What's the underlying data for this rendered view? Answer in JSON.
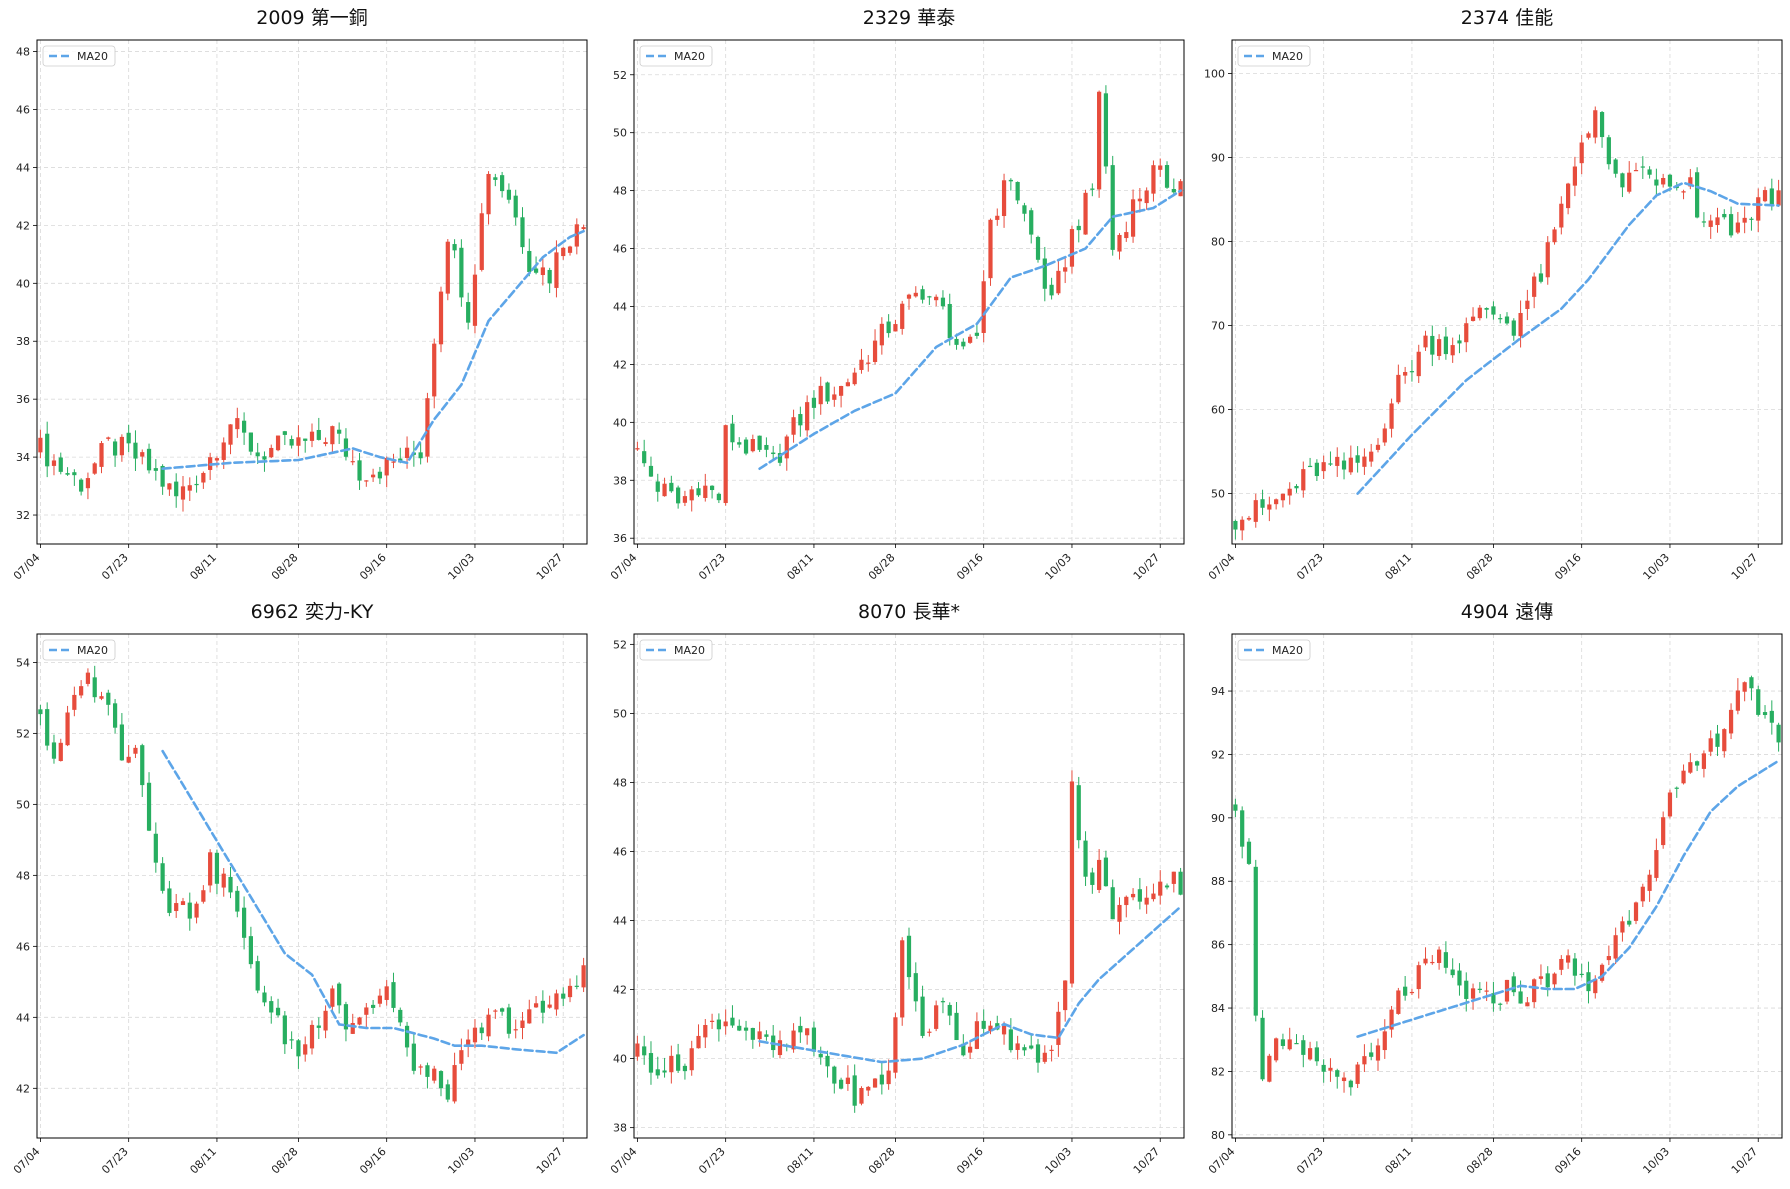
{
  "colors": {
    "up": "#e74c3c",
    "down": "#27ae60",
    "ma": "#5da5e8",
    "grid": "#d9d9d9"
  },
  "chart_data": [
    {
      "type": "candlestick",
      "title": "2009 第一銅",
      "legend": {
        "label": "MA20",
        "placement": "top-left"
      },
      "grid": true,
      "x_ticks": [
        "07/04",
        "07/23",
        "08/11",
        "08/28",
        "09/16",
        "10/03",
        "10/27"
      ],
      "x_tick_index": [
        0,
        13,
        26,
        38,
        51,
        64,
        77
      ],
      "n": 81,
      "ylim": [
        31,
        48.4
      ],
      "y_ticks": [
        32,
        34,
        36,
        38,
        40,
        42,
        44,
        46,
        48
      ],
      "anchors": [
        [
          0,
          34.3
        ],
        [
          3,
          33.6
        ],
        [
          6,
          33.1
        ],
        [
          10,
          34.4
        ],
        [
          13,
          34.2
        ],
        [
          17,
          33.4
        ],
        [
          20,
          32.6
        ],
        [
          24,
          33.6
        ],
        [
          28,
          35.2
        ],
        [
          32,
          34.1
        ],
        [
          36,
          34.4
        ],
        [
          40,
          34.5
        ],
        [
          43,
          34.9
        ],
        [
          47,
          33.5
        ],
        [
          50,
          33.6
        ],
        [
          54,
          34.0
        ],
        [
          56,
          34.2
        ],
        [
          58,
          38.2
        ],
        [
          60,
          41.8
        ],
        [
          63,
          39.0
        ],
        [
          66,
          44.0
        ],
        [
          69,
          43.0
        ],
        [
          72,
          40.8
        ],
        [
          75,
          40.3
        ],
        [
          77,
          41.5
        ],
        [
          80,
          42.0
        ]
      ],
      "ma": [
        [
          18,
          33.6
        ],
        [
          28,
          33.8
        ],
        [
          38,
          33.9
        ],
        [
          46,
          34.3
        ],
        [
          50,
          34.0
        ],
        [
          54,
          33.8
        ],
        [
          58,
          35.3
        ],
        [
          62,
          36.5
        ],
        [
          66,
          38.7
        ],
        [
          70,
          39.8
        ],
        [
          74,
          40.9
        ],
        [
          78,
          41.6
        ],
        [
          80,
          41.8
        ]
      ]
    },
    {
      "type": "candlestick",
      "title": "2329 華泰",
      "legend": {
        "label": "MA20",
        "placement": "top-left"
      },
      "grid": true,
      "x_ticks": [
        "07/04",
        "07/23",
        "08/11",
        "08/28",
        "09/16",
        "10/03",
        "10/27"
      ],
      "x_tick_index": [
        0,
        13,
        26,
        38,
        51,
        64,
        77
      ],
      "n": 81,
      "ylim": [
        35.8,
        53.2
      ],
      "y_ticks": [
        36,
        38,
        40,
        42,
        44,
        46,
        48,
        50,
        52
      ],
      "anchors": [
        [
          0,
          38.9
        ],
        [
          3,
          37.8
        ],
        [
          6,
          37.2
        ],
        [
          9,
          37.9
        ],
        [
          12,
          37.4
        ],
        [
          13,
          39.6
        ],
        [
          17,
          39.0
        ],
        [
          20,
          38.6
        ],
        [
          23,
          39.8
        ],
        [
          26,
          40.8
        ],
        [
          30,
          41.2
        ],
        [
          34,
          42.4
        ],
        [
          38,
          43.6
        ],
        [
          42,
          44.6
        ],
        [
          45,
          43.8
        ],
        [
          48,
          42.2
        ],
        [
          50,
          43.0
        ],
        [
          52,
          47.0
        ],
        [
          55,
          48.5
        ],
        [
          58,
          46.4
        ],
        [
          61,
          44.0
        ],
        [
          64,
          46.5
        ],
        [
          67,
          48.0
        ],
        [
          68,
          51.5
        ],
        [
          70,
          46.0
        ],
        [
          73,
          47.5
        ],
        [
          76,
          48.6
        ],
        [
          78,
          48.3
        ],
        [
          80,
          48.3
        ]
      ],
      "ma": [
        [
          18,
          38.4
        ],
        [
          26,
          39.6
        ],
        [
          32,
          40.4
        ],
        [
          38,
          41.0
        ],
        [
          44,
          42.6
        ],
        [
          50,
          43.4
        ],
        [
          55,
          45.0
        ],
        [
          60,
          45.4
        ],
        [
          66,
          46.0
        ],
        [
          70,
          47.1
        ],
        [
          76,
          47.4
        ],
        [
          80,
          48.0
        ]
      ]
    },
    {
      "type": "candlestick",
      "title": "2374 佳能",
      "legend": {
        "label": "MA20",
        "placement": "top-left"
      },
      "grid": true,
      "x_ticks": [
        "07/04",
        "07/23",
        "08/11",
        "08/28",
        "09/16",
        "10/03",
        "10/27"
      ],
      "x_tick_index": [
        0,
        13,
        26,
        38,
        51,
        64,
        77
      ],
      "n": 81,
      "ylim": [
        44,
        104
      ],
      "y_ticks": [
        50,
        60,
        70,
        80,
        90,
        100
      ],
      "anchors": [
        [
          0,
          47
        ],
        [
          5,
          48.5
        ],
        [
          9,
          51
        ],
        [
          12,
          53
        ],
        [
          17,
          53
        ],
        [
          20,
          55
        ],
        [
          24,
          63
        ],
        [
          28,
          68
        ],
        [
          32,
          68
        ],
        [
          37,
          72
        ],
        [
          41,
          70
        ],
        [
          45,
          76
        ],
        [
          47,
          81
        ],
        [
          51,
          92
        ],
        [
          53,
          96
        ],
        [
          55,
          88
        ],
        [
          58,
          87
        ],
        [
          61,
          88
        ],
        [
          64,
          86
        ],
        [
          67,
          87
        ],
        [
          68,
          82
        ],
        [
          71,
          82
        ],
        [
          74,
          81
        ],
        [
          77,
          85
        ],
        [
          80,
          85
        ]
      ],
      "ma": [
        [
          18,
          50
        ],
        [
          26,
          57
        ],
        [
          34,
          63.5
        ],
        [
          42,
          68.5
        ],
        [
          48,
          72
        ],
        [
          52,
          75.5
        ],
        [
          58,
          82
        ],
        [
          62,
          85.5
        ],
        [
          66,
          87
        ],
        [
          70,
          86
        ],
        [
          74,
          84.5
        ],
        [
          80,
          84.3
        ]
      ]
    },
    {
      "type": "candlestick",
      "title": "6962 奕力-KY",
      "legend": {
        "label": "MA20",
        "placement": "top-left"
      },
      "grid": true,
      "x_ticks": [
        "07/04",
        "07/23",
        "08/11",
        "08/28",
        "09/16",
        "10/03",
        "10/27"
      ],
      "x_tick_index": [
        0,
        13,
        26,
        38,
        51,
        64,
        77
      ],
      "n": 81,
      "ylim": [
        40.6,
        54.8
      ],
      "y_ticks": [
        42,
        44,
        46,
        48,
        50,
        52,
        54
      ],
      "anchors": [
        [
          0,
          52.6
        ],
        [
          2,
          51.0
        ],
        [
          4,
          52.3
        ],
        [
          6,
          53.6
        ],
        [
          9,
          53.2
        ],
        [
          12,
          51.5
        ],
        [
          14,
          51.8
        ],
        [
          16,
          49.3
        ],
        [
          19,
          47.2
        ],
        [
          22,
          47.0
        ],
        [
          25,
          48.3
        ],
        [
          28,
          47.6
        ],
        [
          30,
          46.0
        ],
        [
          34,
          44.0
        ],
        [
          38,
          43.0
        ],
        [
          41,
          44.0
        ],
        [
          43,
          45.0
        ],
        [
          45,
          43.8
        ],
        [
          48,
          44.2
        ],
        [
          51,
          44.8
        ],
        [
          54,
          43.0
        ],
        [
          57,
          42.3
        ],
        [
          60,
          42.0
        ],
        [
          64,
          43.5
        ],
        [
          67,
          44.0
        ],
        [
          70,
          43.8
        ],
        [
          74,
          44.2
        ],
        [
          77,
          44.6
        ],
        [
          80,
          45.5
        ]
      ],
      "ma": [
        [
          18,
          51.5
        ],
        [
          24,
          49.6
        ],
        [
          30,
          47.7
        ],
        [
          36,
          45.8
        ],
        [
          40,
          45.2
        ],
        [
          44,
          43.8
        ],
        [
          48,
          43.7
        ],
        [
          52,
          43.7
        ],
        [
          56,
          43.5
        ],
        [
          58,
          43.4
        ],
        [
          61,
          43.2
        ],
        [
          65,
          43.2
        ],
        [
          70,
          43.1
        ],
        [
          76,
          43.0
        ],
        [
          80,
          43.5
        ]
      ]
    },
    {
      "type": "candlestick",
      "title": "8070 長華*",
      "legend": {
        "label": "MA20",
        "placement": "top-left"
      },
      "grid": true,
      "x_ticks": [
        "07/04",
        "07/23",
        "08/11",
        "08/28",
        "09/16",
        "10/03",
        "10/27"
      ],
      "x_tick_index": [
        0,
        13,
        26,
        38,
        51,
        64,
        77
      ],
      "n": 81,
      "ylim": [
        37.7,
        52.3
      ],
      "y_ticks": [
        38,
        40,
        42,
        44,
        46,
        48,
        50,
        52
      ],
      "anchors": [
        [
          0,
          40.2
        ],
        [
          3,
          39.8
        ],
        [
          6,
          39.7
        ],
        [
          9,
          40.6
        ],
        [
          12,
          41.2
        ],
        [
          15,
          41.0
        ],
        [
          18,
          40.5
        ],
        [
          21,
          40.2
        ],
        [
          24,
          40.8
        ],
        [
          27,
          40.0
        ],
        [
          30,
          39.2
        ],
        [
          33,
          38.9
        ],
        [
          37,
          39.6
        ],
        [
          39,
          43.2
        ],
        [
          42,
          40.8
        ],
        [
          45,
          41.5
        ],
        [
          48,
          40.3
        ],
        [
          51,
          41.2
        ],
        [
          54,
          40.9
        ],
        [
          57,
          40.0
        ],
        [
          60,
          39.9
        ],
        [
          63,
          42.0
        ],
        [
          64,
          48.0
        ],
        [
          66,
          45.0
        ],
        [
          68,
          45.5
        ],
        [
          70,
          44.3
        ],
        [
          73,
          44.6
        ],
        [
          76,
          45.0
        ],
        [
          78,
          45.2
        ],
        [
          80,
          45.1
        ]
      ],
      "ma": [
        [
          18,
          40.5
        ],
        [
          24,
          40.3
        ],
        [
          30,
          40.1
        ],
        [
          36,
          39.9
        ],
        [
          42,
          40.0
        ],
        [
          48,
          40.4
        ],
        [
          54,
          41.0
        ],
        [
          58,
          40.7
        ],
        [
          62,
          40.6
        ],
        [
          65,
          41.6
        ],
        [
          68,
          42.3
        ],
        [
          72,
          43.0
        ],
        [
          76,
          43.7
        ],
        [
          80,
          44.4
        ]
      ]
    },
    {
      "type": "candlestick",
      "title": "4904 遠傳",
      "legend": {
        "label": "MA20",
        "placement": "top-left"
      },
      "grid": true,
      "x_ticks": [
        "07/04",
        "07/23",
        "08/11",
        "08/28",
        "09/16",
        "10/03",
        "10/27"
      ],
      "x_tick_index": [
        0,
        13,
        26,
        38,
        51,
        64,
        77
      ],
      "n": 81,
      "ylim": [
        79.9,
        95.8
      ],
      "y_ticks": [
        80,
        82,
        84,
        86,
        88,
        90,
        92,
        94
      ],
      "anchors": [
        [
          0,
          90.5
        ],
        [
          2,
          88.3
        ],
        [
          3,
          84.0
        ],
        [
          4,
          82.0
        ],
        [
          6,
          82.7
        ],
        [
          9,
          82.6
        ],
        [
          12,
          82.3
        ],
        [
          15,
          81.8
        ],
        [
          18,
          81.9
        ],
        [
          21,
          82.6
        ],
        [
          24,
          84.3
        ],
        [
          27,
          85.0
        ],
        [
          30,
          85.5
        ],
        [
          33,
          84.6
        ],
        [
          37,
          84.2
        ],
        [
          40,
          84.6
        ],
        [
          43,
          84.4
        ],
        [
          46,
          85.0
        ],
        [
          49,
          85.4
        ],
        [
          52,
          84.6
        ],
        [
          55,
          85.8
        ],
        [
          58,
          87.0
        ],
        [
          61,
          88.6
        ],
        [
          64,
          90.5
        ],
        [
          67,
          91.4
        ],
        [
          70,
          92.2
        ],
        [
          73,
          93.5
        ],
        [
          75,
          94.5
        ],
        [
          77,
          93.0
        ],
        [
          80,
          92.6
        ]
      ],
      "ma": [
        [
          18,
          83.1
        ],
        [
          24,
          83.5
        ],
        [
          30,
          83.9
        ],
        [
          36,
          84.3
        ],
        [
          42,
          84.7
        ],
        [
          46,
          84.6
        ],
        [
          50,
          84.6
        ],
        [
          54,
          85.0
        ],
        [
          58,
          85.9
        ],
        [
          62,
          87.2
        ],
        [
          66,
          88.8
        ],
        [
          70,
          90.2
        ],
        [
          74,
          91.0
        ],
        [
          80,
          91.8
        ]
      ]
    }
  ]
}
